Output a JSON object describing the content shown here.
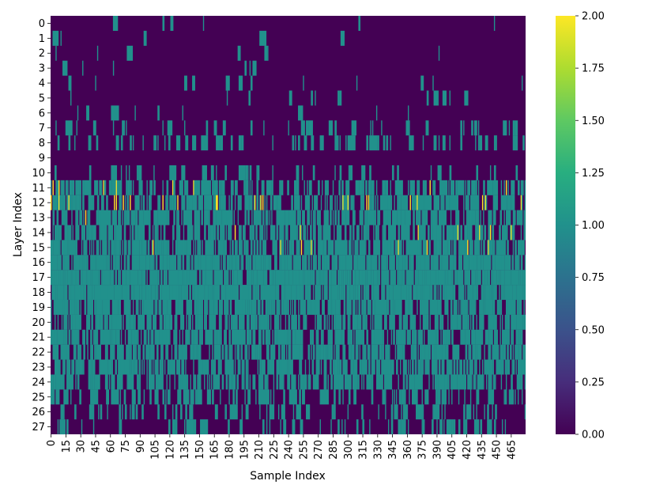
{
  "chart_data": {
    "type": "heatmap",
    "title": "",
    "xlabel": "Sample Index",
    "ylabel": "Layer Index",
    "n_samples": 480,
    "n_layers": 28,
    "x_tick_labels": [
      "0",
      "15",
      "30",
      "45",
      "60",
      "75",
      "90",
      "105",
      "120",
      "135",
      "150",
      "165",
      "180",
      "195",
      "210",
      "225",
      "240",
      "255",
      "270",
      "285",
      "300",
      "315",
      "330",
      "345",
      "360",
      "375",
      "390",
      "405",
      "420",
      "435",
      "450",
      "465"
    ],
    "y_tick_labels": [
      "0",
      "1",
      "2",
      "3",
      "4",
      "5",
      "6",
      "7",
      "8",
      "9",
      "10",
      "11",
      "12",
      "13",
      "14",
      "15",
      "16",
      "17",
      "18",
      "19",
      "20",
      "21",
      "22",
      "23",
      "24",
      "25",
      "26",
      "27"
    ],
    "colormap": "viridis",
    "vmin": 0.0,
    "vmax": 2.0,
    "colorbar_ticks": [
      "0.00",
      "0.25",
      "0.50",
      "0.75",
      "1.00",
      "1.25",
      "1.50",
      "1.75",
      "2.00"
    ],
    "layer_profile": {
      "description_levels": [
        0,
        1,
        2
      ],
      "prob_value_1": [
        0.01,
        0.01,
        0.01,
        0.01,
        0.02,
        0.03,
        0.03,
        0.08,
        0.12,
        0.0,
        0.08,
        0.35,
        0.4,
        0.45,
        0.5,
        0.55,
        0.78,
        0.8,
        0.82,
        0.6,
        0.5,
        0.55,
        0.55,
        0.5,
        0.45,
        0.25,
        0.15,
        0.12
      ],
      "prob_value_2": [
        0,
        0,
        0,
        0,
        0,
        0,
        0,
        0,
        0,
        0,
        0,
        0.02,
        0.06,
        0.01,
        0.02,
        0.02,
        0,
        0,
        0,
        0,
        0,
        0,
        0,
        0,
        0,
        0,
        0,
        0
      ]
    }
  }
}
